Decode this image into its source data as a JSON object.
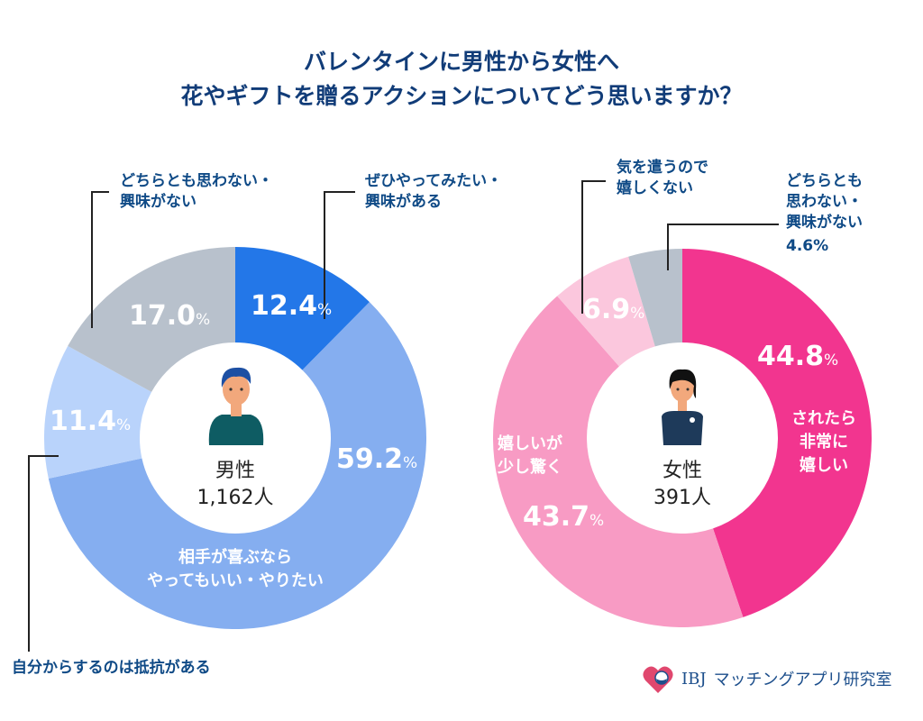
{
  "chart_data": [
    {
      "type": "pie",
      "title": "バレンタインに男性から女性へ\n花やギフトを贈るアクションについてどう思いますか？",
      "center_label": "男性",
      "center_count": "1,162人",
      "unit": "%",
      "slices": [
        {
          "label": "ぜひやってみたい・興味がある",
          "value": 12.4,
          "color": "#2377e8"
        },
        {
          "label": "相手が喜ぶならやってもいい・やりたい",
          "value": 59.2,
          "color": "#85aef0"
        },
        {
          "label": "自分からするのは抵抗がある",
          "value": 11.4,
          "color": "#b9d3fb"
        },
        {
          "label": "どちらとも思わない・興味がない",
          "value": 17.0,
          "color": "#b8c1cc"
        }
      ]
    },
    {
      "type": "pie",
      "center_label": "女性",
      "center_count": "391人",
      "unit": "%",
      "slices": [
        {
          "label": "されたら非常に嬉しい",
          "value": 44.8,
          "color": "#f2358f"
        },
        {
          "label": "嬉しいが少し驚く",
          "value": 43.7,
          "color": "#f89bc4"
        },
        {
          "label": "気を遣うので嬉しくない",
          "value": 6.9,
          "color": "#fbc7dd"
        },
        {
          "label": "どちらとも思わない・興味がない",
          "value": 4.6,
          "color": "#b8c1cc"
        }
      ]
    }
  ],
  "title_line1": "バレンタインに男性から女性へ",
  "title_line2": "花やギフトを贈るアクションについてどう思いますか？",
  "labels": {
    "m_neutral_1": "どちらとも思わない・",
    "m_neutral_2": "興味がない",
    "m_want_1": "ぜひやってみたい・",
    "m_want_2": "興味がある",
    "m_ok_1": "相手が喜ぶなら",
    "m_ok_2": "やってもいい・やりたい",
    "m_resist": "自分からするのは抵抗がある",
    "m_p1": "12.4",
    "m_p2": "59.2",
    "m_p3": "11.4",
    "m_p4": "17.0",
    "f_very_1": "されたら",
    "f_very_2": "非常に",
    "f_very_3": "嬉しい",
    "f_surp_1": "嬉しいが",
    "f_surp_2": "少し驚く",
    "f_no_1": "気を遣うので",
    "f_no_2": "嬉しくない",
    "f_neutral_1": "どちらとも",
    "f_neutral_2": "思わない・",
    "f_neutral_3": "興味がない",
    "f_p1": "44.8",
    "f_p2": "43.7",
    "f_p3": "6.9",
    "f_p4": "4.6%",
    "pct": "%"
  },
  "logo": {
    "brand": "IBJ",
    "text": "マッチングアプリ研究室"
  }
}
